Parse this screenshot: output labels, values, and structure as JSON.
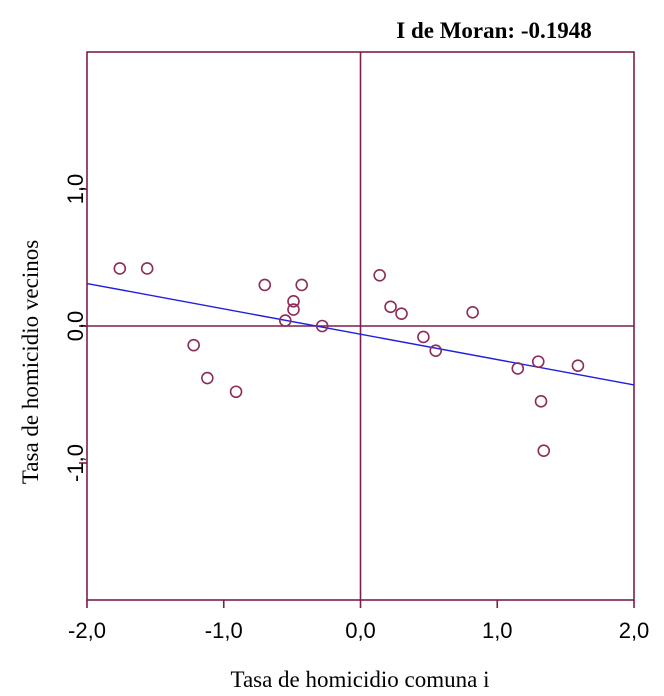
{
  "chart_data": {
    "type": "scatter",
    "title": "I de Moran: -0.1948",
    "xlabel": "Tasa de homicidio comuna i",
    "ylabel": "Tasa de homicidio vecinos",
    "xlim": [
      -2.0,
      2.0
    ],
    "ylim": [
      -2.0,
      2.0
    ],
    "x_ticks": [
      {
        "value": -2.0,
        "label": "-2,0"
      },
      {
        "value": -1.0,
        "label": "-1,0"
      },
      {
        "value": 0.0,
        "label": "0,0"
      },
      {
        "value": 1.0,
        "label": "1,0"
      },
      {
        "value": 2.0,
        "label": "2,0"
      }
    ],
    "y_ticks": [
      {
        "value": -1.0,
        "label": "-1,0"
      },
      {
        "value": 0.0,
        "label": "0,0"
      },
      {
        "value": 1.0,
        "label": "1,0"
      }
    ],
    "grid": false,
    "points": [
      {
        "x": -1.76,
        "y": 0.42
      },
      {
        "x": -1.56,
        "y": 0.42
      },
      {
        "x": -1.22,
        "y": -0.14
      },
      {
        "x": -1.12,
        "y": -0.38
      },
      {
        "x": -0.91,
        "y": -0.48
      },
      {
        "x": -0.7,
        "y": 0.3
      },
      {
        "x": -0.55,
        "y": 0.04
      },
      {
        "x": -0.49,
        "y": 0.18
      },
      {
        "x": -0.49,
        "y": 0.12
      },
      {
        "x": -0.43,
        "y": 0.3
      },
      {
        "x": -0.28,
        "y": 0.0
      },
      {
        "x": 0.14,
        "y": 0.37
      },
      {
        "x": 0.22,
        "y": 0.14
      },
      {
        "x": 0.3,
        "y": 0.09
      },
      {
        "x": 0.46,
        "y": -0.08
      },
      {
        "x": 0.55,
        "y": -0.18
      },
      {
        "x": 0.82,
        "y": 0.1
      },
      {
        "x": 1.15,
        "y": -0.31
      },
      {
        "x": 1.3,
        "y": -0.26
      },
      {
        "x": 1.32,
        "y": -0.55
      },
      {
        "x": 1.34,
        "y": -0.91
      },
      {
        "x": 1.59,
        "y": -0.29
      }
    ],
    "regression_line": {
      "x": [
        -2.0,
        2.0
      ],
      "y": [
        0.31,
        -0.43
      ]
    },
    "colors": {
      "frame": "#7b1f4d",
      "points": "#8c2c58",
      "regression": "#1f1fe0",
      "text": "#000000"
    }
  }
}
